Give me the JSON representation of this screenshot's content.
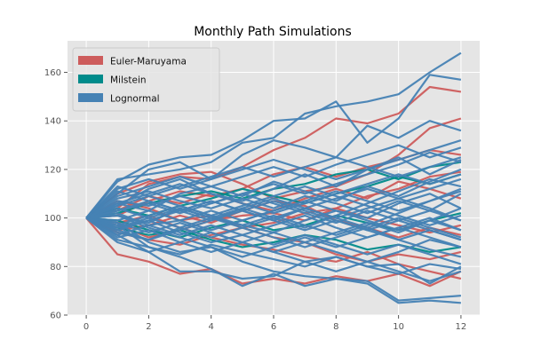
{
  "chart_data": {
    "type": "line",
    "title": "Monthly Path Simulations",
    "xlabel": "",
    "ylabel": "",
    "xlim": [
      -0.6,
      12.6
    ],
    "ylim": [
      60,
      173
    ],
    "x_ticks": [
      0,
      2,
      4,
      6,
      8,
      10,
      12
    ],
    "y_ticks": [
      60,
      80,
      100,
      120,
      140,
      160
    ],
    "grid": true,
    "legend_position": "top-left",
    "x": [
      0,
      1,
      2,
      3,
      4,
      5,
      6,
      7,
      8,
      9,
      10,
      11,
      12
    ],
    "series": [
      {
        "name": "Euler-Maruyama",
        "color": "#cd5c5c",
        "paths": [
          [
            100,
            104,
            114,
            117,
            116,
            121,
            128,
            133,
            141,
            139,
            143,
            154,
            152
          ],
          [
            100,
            85,
            82,
            77,
            79,
            73,
            75,
            73,
            76,
            74,
            77,
            72,
            78
          ],
          [
            100,
            110,
            115,
            118,
            119,
            114,
            108,
            111,
            113,
            118,
            126,
            137,
            141
          ],
          [
            100,
            94,
            91,
            89,
            93,
            96,
            92,
            90,
            85,
            82,
            85,
            83,
            86
          ],
          [
            100,
            101,
            107,
            111,
            109,
            112,
            118,
            121,
            117,
            121,
            124,
            128,
            126
          ],
          [
            100,
            97,
            92,
            95,
            99,
            101,
            102,
            99,
            104,
            100,
            97,
            94,
            97
          ],
          [
            100,
            107,
            104,
            99,
            101,
            96,
            98,
            102,
            104,
            109,
            112,
            117,
            119
          ],
          [
            100,
            98,
            101,
            96,
            92,
            89,
            87,
            84,
            82,
            86,
            81,
            78,
            75
          ],
          [
            100,
            103,
            109,
            106,
            110,
            106,
            103,
            108,
            112,
            108,
            115,
            112,
            108
          ],
          [
            100,
            95,
            97,
            101,
            98,
            103,
            107,
            105,
            99,
            96,
            92,
            96,
            93
          ]
        ]
      },
      {
        "name": "Milstein",
        "color": "#008b8b",
        "paths": [
          [
            100,
            102,
            106,
            109,
            111,
            108,
            112,
            114,
            118,
            120,
            116,
            121,
            123
          ],
          [
            100,
            96,
            93,
            95,
            91,
            88,
            90,
            93,
            91,
            87,
            89,
            86,
            88
          ],
          [
            100,
            104,
            101,
            105,
            108,
            112,
            109,
            106,
            110,
            113,
            117,
            114,
            118
          ],
          [
            100,
            99,
            95,
            92,
            96,
            99,
            95,
            97,
            101,
            98,
            95,
            99,
            102
          ]
        ]
      },
      {
        "name": "Lognormal",
        "color": "#4682b4",
        "paths": [
          [
            100,
            116,
            118,
            120,
            123,
            131,
            133,
            143,
            146,
            148,
            151,
            160,
            168
          ],
          [
            100,
            115,
            122,
            125,
            126,
            132,
            140,
            141,
            148,
            131,
            141,
            159,
            157
          ],
          [
            100,
            98,
            90,
            86,
            88,
            82,
            78,
            76,
            75,
            74,
            66,
            67,
            68
          ],
          [
            100,
            97,
            88,
            84,
            79,
            72,
            77,
            72,
            75,
            73,
            65,
            66,
            65
          ],
          [
            100,
            110,
            120,
            123,
            116,
            126,
            132,
            129,
            125,
            138,
            133,
            140,
            136
          ],
          [
            100,
            93,
            86,
            78,
            78,
            75,
            76,
            82,
            84,
            80,
            81,
            73,
            80
          ],
          [
            100,
            105,
            112,
            116,
            110,
            107,
            112,
            118,
            113,
            120,
            125,
            118,
            124
          ],
          [
            100,
            101,
            98,
            104,
            100,
            97,
            94,
            99,
            103,
            100,
            106,
            110,
            104
          ],
          [
            100,
            96,
            99,
            94,
            90,
            93,
            97,
            101,
            96,
            92,
            96,
            100,
            95
          ],
          [
            100,
            106,
            103,
            110,
            113,
            109,
            115,
            111,
            107,
            113,
            109,
            115,
            120
          ],
          [
            100,
            94,
            91,
            96,
            100,
            96,
            92,
            88,
            92,
            96,
            91,
            87,
            84
          ],
          [
            100,
            108,
            111,
            107,
            104,
            108,
            104,
            109,
            106,
            102,
            107,
            103,
            110
          ],
          [
            100,
            92,
            95,
            90,
            86,
            90,
            94,
            90,
            86,
            82,
            86,
            91,
            88
          ],
          [
            100,
            103,
            106,
            102,
            106,
            110,
            106,
            102,
            98,
            103,
            99,
            95,
            91
          ],
          [
            100,
            111,
            107,
            103,
            107,
            103,
            99,
            104,
            108,
            112,
            108,
            104,
            99
          ],
          [
            100,
            97,
            101,
            105,
            101,
            97,
            101,
            97,
            93,
            97,
            102,
            107,
            112
          ],
          [
            100,
            104,
            100,
            96,
            92,
            96,
            100,
            104,
            100,
            96,
            100,
            96,
            92
          ],
          [
            100,
            95,
            91,
            95,
            99,
            104,
            100,
            96,
            101,
            106,
            111,
            116,
            113
          ],
          [
            100,
            109,
            113,
            117,
            113,
            117,
            121,
            117,
            122,
            126,
            130,
            125,
            129
          ],
          [
            100,
            91,
            88,
            85,
            89,
            86,
            83,
            80,
            84,
            80,
            77,
            81,
            79
          ],
          [
            100,
            102,
            97,
            99,
            103,
            99,
            103,
            107,
            103,
            99,
            95,
            99,
            104
          ],
          [
            100,
            107,
            105,
            109,
            106,
            110,
            114,
            110,
            114,
            118,
            122,
            127,
            123
          ],
          [
            100,
            93,
            97,
            93,
            97,
            93,
            89,
            93,
            89,
            85,
            89,
            85,
            81
          ],
          [
            100,
            105,
            109,
            105,
            101,
            105,
            109,
            113,
            109,
            105,
            101,
            97,
            101
          ],
          [
            100,
            98,
            94,
            98,
            94,
            90,
            86,
            90,
            94,
            98,
            94,
            99,
            95
          ],
          [
            100,
            112,
            116,
            112,
            116,
            120,
            124,
            120,
            116,
            120,
            124,
            128,
            132
          ],
          [
            100,
            90,
            86,
            90,
            94,
            90,
            86,
            82,
            78,
            82,
            78,
            74,
            78
          ],
          [
            100,
            106,
            110,
            114,
            110,
            106,
            102,
            106,
            110,
            114,
            118,
            114,
            118
          ],
          [
            100,
            99,
            103,
            99,
            95,
            99,
            103,
            107,
            111,
            107,
            103,
            107,
            111
          ],
          [
            100,
            95,
            99,
            103,
            107,
            103,
            107,
            103,
            99,
            95,
            99,
            103,
            99
          ],
          [
            100,
            101,
            96,
            92,
            88,
            84,
            88,
            92,
            88,
            92,
            96,
            92,
            88
          ],
          [
            100,
            113,
            109,
            113,
            117,
            121,
            117,
            121,
            125,
            121,
            117,
            121,
            125
          ],
          [
            100,
            96,
            100,
            104,
            100,
            104,
            108,
            104,
            100,
            104,
            108,
            112,
            116
          ],
          [
            100,
            103,
            107,
            103,
            99,
            103,
            99,
            95,
            99,
            95,
            91,
            95,
            91
          ]
        ]
      }
    ],
    "legend": [
      "Euler-Maruyama",
      "Milstein",
      "Lognormal"
    ]
  }
}
